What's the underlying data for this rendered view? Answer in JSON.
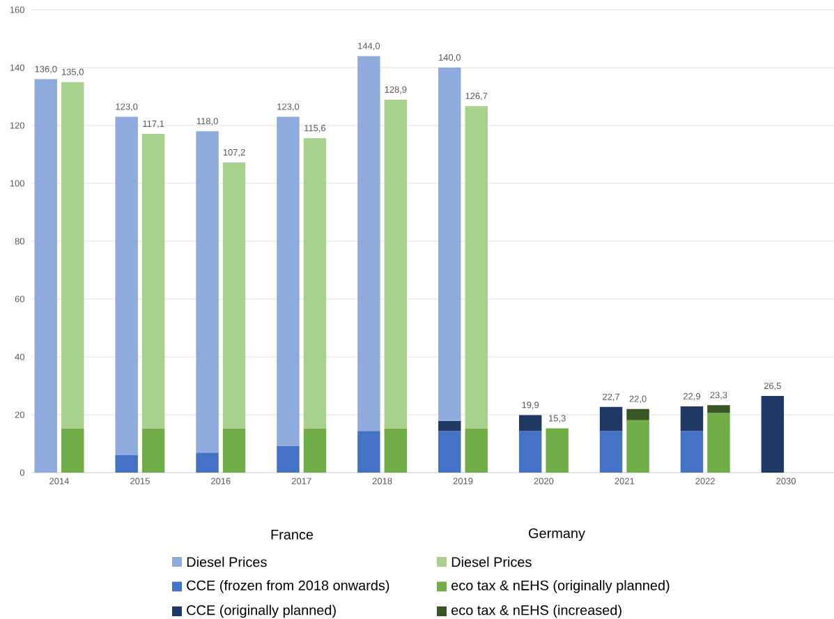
{
  "chart_data": [
    {
      "type": "bar",
      "stacked": true,
      "legend_title": "France",
      "categories": [
        "2014",
        "2015",
        "2016",
        "2017",
        "2018",
        "2019",
        "2020",
        "2021",
        "2022",
        "2030"
      ],
      "series": [
        {
          "name": "CCE (frozen from 2018 onwards)",
          "color": "#4472c4",
          "values": [
            null,
            6.0,
            6.9,
            9.3,
            14.4,
            14.4,
            14.4,
            14.4,
            14.4,
            null
          ]
        },
        {
          "name": "CCE (originally planned)",
          "color": "#203864",
          "values": [
            null,
            null,
            null,
            null,
            null,
            3.5,
            5.5,
            8.3,
            8.5,
            26.5
          ]
        },
        {
          "name": "Diesel Prices",
          "color": "#8faadc",
          "values": [
            136.0,
            117.0,
            111.1,
            113.7,
            129.6,
            122.1,
            null,
            null,
            null,
            null
          ]
        }
      ],
      "totals": [
        "136,0",
        "123,0",
        "118,0",
        "123,0",
        "144,0",
        "140,0",
        "19,9",
        "22,7",
        "22,9",
        "26,5"
      ],
      "ylim": [
        0,
        160
      ],
      "yticks": [
        0,
        20,
        40,
        60,
        80,
        100,
        120,
        140,
        160
      ],
      "grid": "y",
      "legend": "bottom"
    },
    {
      "type": "bar",
      "stacked": true,
      "legend_title": "Germany",
      "categories": [
        "2014",
        "2015",
        "2016",
        "2017",
        "2018",
        "2019",
        "2020",
        "2021",
        "2022",
        "2030"
      ],
      "series": [
        {
          "name": "eco tax & nEHS (originally planned)",
          "color": "#70ad47",
          "values": [
            15.3,
            15.3,
            15.3,
            15.3,
            15.3,
            15.3,
            15.3,
            18.1,
            20.6,
            null
          ]
        },
        {
          "name": "eco tax & nEHS (increased)",
          "color": "#375623",
          "values": [
            null,
            null,
            null,
            null,
            null,
            null,
            null,
            3.9,
            2.7,
            null
          ]
        },
        {
          "name": "Diesel Prices",
          "color": "#a9d18e",
          "values": [
            119.7,
            101.8,
            91.9,
            100.3,
            113.6,
            111.4,
            null,
            null,
            null,
            null
          ]
        }
      ],
      "totals": [
        "135,0",
        "117,1",
        "107,2",
        "115,6",
        "128,9",
        "126,7",
        "15,3",
        "22,0",
        "23,3",
        null
      ],
      "ylim": [
        0,
        160
      ],
      "yticks": [
        0,
        20,
        40,
        60,
        80,
        100,
        120,
        140,
        160
      ],
      "legend": "bottom",
      "tick_labels": false
    }
  ]
}
